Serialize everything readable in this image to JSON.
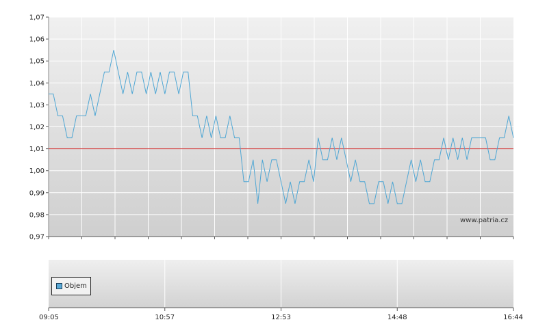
{
  "chart_data": [
    {
      "type": "line",
      "y_ticks": [
        "1,07",
        "1,06",
        "1,05",
        "1,04",
        "1,03",
        "1,02",
        "1,01",
        "1,00",
        "0,99",
        "0,98",
        "0,97"
      ],
      "ylim": [
        0.97,
        1.07
      ],
      "x_ticks": [
        "09:05",
        "10:57",
        "12:53",
        "14:48",
        "16:44"
      ],
      "reference_line": 1.01,
      "reference_line_color": "#d03030",
      "line_color": "#4ea6d4",
      "grid": true,
      "watermark": "www.patria.cz",
      "series": [
        {
          "values": [
            1.035,
            1.035,
            1.025,
            1.025,
            1.015,
            1.015,
            1.025,
            1.025,
            1.025,
            1.035,
            1.025,
            1.035,
            1.045,
            1.045,
            1.055,
            1.045,
            1.035,
            1.045,
            1.035,
            1.045,
            1.045,
            1.035,
            1.045,
            1.035,
            1.045,
            1.035,
            1.045,
            1.045,
            1.035,
            1.045,
            1.045,
            1.025,
            1.025,
            1.015,
            1.025,
            1.015,
            1.025,
            1.015,
            1.015,
            1.025,
            1.015,
            1.015,
            0.995,
            0.995,
            1.005,
            0.985,
            1.005,
            0.995,
            1.005,
            1.005,
            0.995,
            0.985,
            0.995,
            0.985,
            0.995,
            0.995,
            1.005,
            0.995,
            1.015,
            1.005,
            1.005,
            1.015,
            1.005,
            1.015,
            1.005,
            0.995,
            1.005,
            0.995,
            0.995,
            0.985,
            0.985,
            0.995,
            0.995,
            0.985,
            0.995,
            0.985,
            0.985,
            0.995,
            1.005,
            0.995,
            1.005,
            0.995,
            0.995,
            1.005,
            1.005,
            1.015,
            1.005,
            1.015,
            1.005,
            1.015,
            1.005,
            1.015,
            1.015,
            1.015,
            1.015,
            1.005,
            1.005,
            1.015,
            1.015,
            1.025,
            1.015
          ]
        }
      ]
    },
    {
      "type": "bar",
      "x_ticks": [
        "09:05",
        "10:57",
        "12:53",
        "14:48",
        "16:44"
      ],
      "legend": [
        "Objem"
      ],
      "legend_color": "#5aa9d6",
      "grid": true
    }
  ]
}
